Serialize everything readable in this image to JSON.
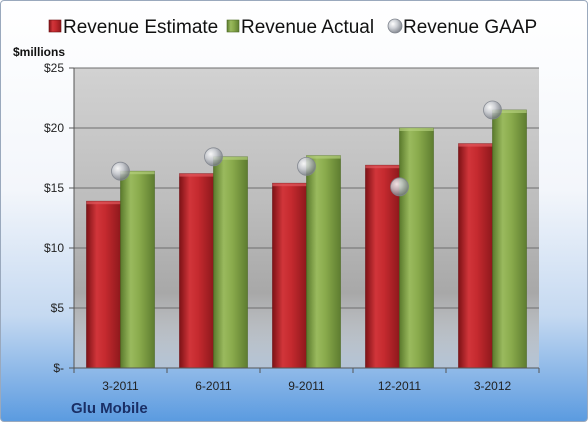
{
  "chart_data": {
    "type": "bar",
    "unit_label": "$millions",
    "company": "Glu Mobile",
    "categories": [
      "3-2011",
      "6-2011",
      "9-2011",
      "12-2011",
      "3-2012"
    ],
    "series": [
      {
        "name": "Revenue Estimate",
        "kind": "bar",
        "color": "#c0262b",
        "values": [
          13.9,
          16.2,
          15.4,
          16.9,
          18.7
        ]
      },
      {
        "name": "Revenue Actual",
        "kind": "bar",
        "color": "#86a74a",
        "values": [
          16.4,
          17.6,
          17.7,
          20.0,
          21.5
        ]
      },
      {
        "name": "Revenue GAAP",
        "kind": "marker",
        "color": "#b8bcc4",
        "values": [
          16.4,
          17.6,
          16.8,
          15.1,
          21.5
        ]
      }
    ],
    "y_ticks": [
      0,
      5,
      10,
      15,
      20,
      25
    ],
    "y_tick_labels": [
      "$-",
      "$5",
      "$10",
      "$15",
      "$20",
      "$25"
    ],
    "ylim": [
      0,
      25
    ],
    "grid": true,
    "legend_position": "top"
  }
}
